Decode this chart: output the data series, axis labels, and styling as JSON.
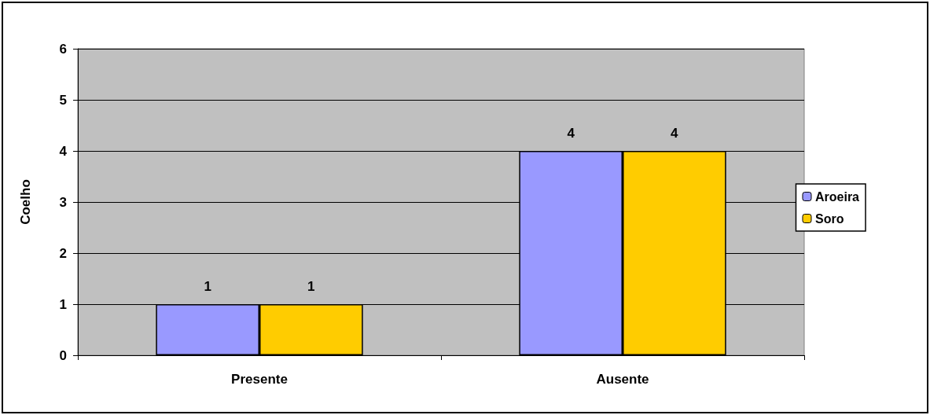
{
  "chart_data": {
    "type": "bar",
    "ylabel": "Coelho",
    "categories": [
      "Presente",
      "Ausente"
    ],
    "series": [
      {
        "name": "Aroeira",
        "color": "#9999ff",
        "values": [
          1,
          4
        ]
      },
      {
        "name": "Soro",
        "color": "#ffcc00",
        "values": [
          1,
          4
        ]
      }
    ],
    "ylim": [
      0,
      6
    ],
    "yticks": [
      0,
      1,
      2,
      3,
      4,
      5,
      6
    ],
    "grid": "y",
    "legend": "right",
    "data_labels": true
  }
}
